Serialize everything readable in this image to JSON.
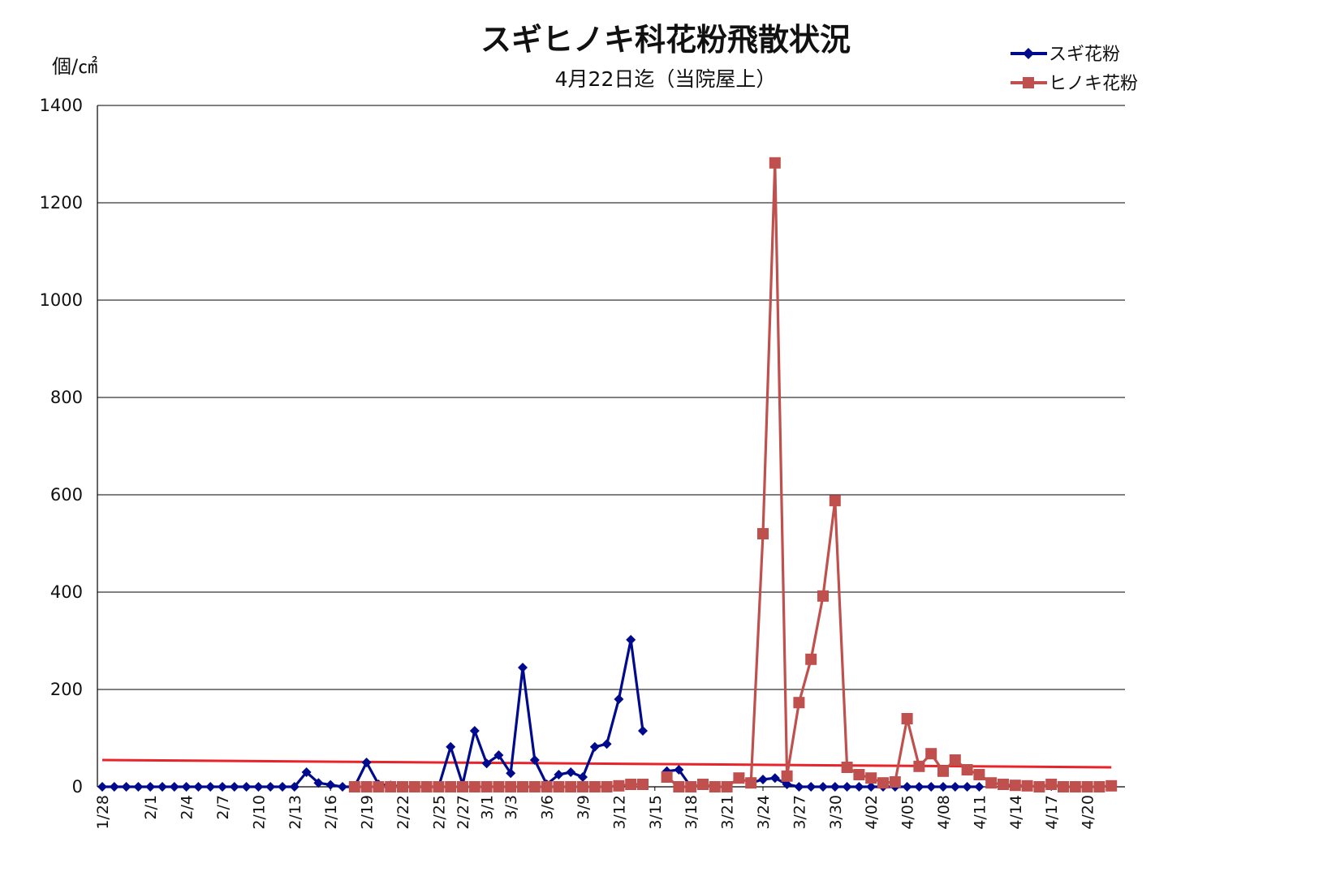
{
  "chart_data": {
    "type": "line",
    "title": "スギヒノキ科花粉飛散状況",
    "subtitle": "4月22日迄（当院屋上）",
    "ylabel": "個/㎠",
    "ylim": [
      0,
      1400
    ],
    "yticks": [
      0,
      200,
      400,
      600,
      800,
      1000,
      1200,
      1400
    ],
    "grid": true,
    "legend": "top-right",
    "x_start": "1/28",
    "x_end": "4/22",
    "xtick_labels": [
      "1/28",
      "2/1",
      "2/4",
      "2/7",
      "2/10",
      "2/13",
      "2/16",
      "2/19",
      "2/22",
      "2/25",
      "2/27",
      "3/1",
      "3/3",
      "3/6",
      "3/9",
      "3/12",
      "3/15",
      "3/18",
      "3/21",
      "3/24",
      "3/27",
      "3/30",
      "4/02",
      "4/05",
      "4/08",
      "4/11",
      "4/14",
      "4/17",
      "4/20"
    ],
    "xtick_dates": [
      "1/28",
      "2/1",
      "2/4",
      "2/7",
      "2/10",
      "2/13",
      "2/16",
      "2/19",
      "2/22",
      "2/25",
      "2/27",
      "3/1",
      "3/3",
      "3/6",
      "3/9",
      "3/12",
      "3/15",
      "3/18",
      "3/21",
      "3/24",
      "3/27",
      "3/30",
      "4/2",
      "4/5",
      "4/8",
      "4/11",
      "4/14",
      "4/17",
      "4/20"
    ],
    "series": [
      {
        "name": "スギ花粉",
        "color": "#000a8c",
        "marker": "diamond",
        "points": [
          {
            "x": "1/28",
            "y": 0
          },
          {
            "x": "1/29",
            "y": 0
          },
          {
            "x": "1/30",
            "y": 0
          },
          {
            "x": "1/31",
            "y": 0
          },
          {
            "x": "2/1",
            "y": 0
          },
          {
            "x": "2/2",
            "y": 0
          },
          {
            "x": "2/3",
            "y": 0
          },
          {
            "x": "2/4",
            "y": 0
          },
          {
            "x": "2/5",
            "y": 0
          },
          {
            "x": "2/6",
            "y": 0
          },
          {
            "x": "2/7",
            "y": 0
          },
          {
            "x": "2/8",
            "y": 0
          },
          {
            "x": "2/9",
            "y": 0
          },
          {
            "x": "2/10",
            "y": 0
          },
          {
            "x": "2/11",
            "y": 0
          },
          {
            "x": "2/12",
            "y": 0
          },
          {
            "x": "2/13",
            "y": 0
          },
          {
            "x": "2/14",
            "y": 30
          },
          {
            "x": "2/15",
            "y": 8
          },
          {
            "x": "2/16",
            "y": 4
          },
          {
            "x": "2/17",
            "y": 0
          },
          {
            "x": "2/18",
            "y": 0
          },
          {
            "x": "2/19",
            "y": 50
          },
          {
            "x": "2/20",
            "y": 5
          },
          {
            "x": "2/21",
            "y": 3
          },
          {
            "x": "2/22",
            "y": 0
          },
          {
            "x": "2/23",
            "y": 0
          },
          {
            "x": "2/24",
            "y": 0
          },
          {
            "x": "2/25",
            "y": 0
          },
          {
            "x": "2/26",
            "y": 82
          },
          {
            "x": "2/27",
            "y": 5
          },
          {
            "x": "2/28",
            "y": 115
          },
          {
            "x": "3/1",
            "y": 48
          },
          {
            "x": "3/2",
            "y": 65
          },
          {
            "x": "3/3",
            "y": 28
          },
          {
            "x": "3/4",
            "y": 245
          },
          {
            "x": "3/5",
            "y": 55
          },
          {
            "x": "3/6",
            "y": 5
          },
          {
            "x": "3/7",
            "y": 25
          },
          {
            "x": "3/8",
            "y": 30
          },
          {
            "x": "3/9",
            "y": 20
          },
          {
            "x": "3/10",
            "y": 82
          },
          {
            "x": "3/11",
            "y": 88
          },
          {
            "x": "3/12",
            "y": 180
          },
          {
            "x": "3/13",
            "y": 302
          },
          {
            "x": "3/14",
            "y": 115
          },
          {
            "x": "3/16",
            "y": 32
          },
          {
            "x": "3/17",
            "y": 35
          },
          {
            "x": "3/18",
            "y": 0
          },
          {
            "x": "3/23",
            "y": 8
          },
          {
            "x": "3/24",
            "y": 15
          },
          {
            "x": "3/25",
            "y": 18
          },
          {
            "x": "3/26",
            "y": 5
          },
          {
            "x": "3/27",
            "y": 0
          },
          {
            "x": "3/28",
            "y": 0
          },
          {
            "x": "3/29",
            "y": 0
          },
          {
            "x": "3/30",
            "y": 0
          },
          {
            "x": "3/31",
            "y": 0
          },
          {
            "x": "4/1",
            "y": 0
          },
          {
            "x": "4/2",
            "y": 0
          },
          {
            "x": "4/3",
            "y": 0
          },
          {
            "x": "4/4",
            "y": 0
          },
          {
            "x": "4/5",
            "y": 0
          },
          {
            "x": "4/6",
            "y": 0
          },
          {
            "x": "4/7",
            "y": 0
          },
          {
            "x": "4/8",
            "y": 0
          },
          {
            "x": "4/9",
            "y": 0
          },
          {
            "x": "4/10",
            "y": 0
          },
          {
            "x": "4/11",
            "y": 0
          }
        ]
      },
      {
        "name": "ヒノキ花粉",
        "color": "#c0504d",
        "marker": "square",
        "points": [
          {
            "x": "2/18",
            "y": 0
          },
          {
            "x": "2/19",
            "y": 0
          },
          {
            "x": "2/20",
            "y": 0
          },
          {
            "x": "2/21",
            "y": 0
          },
          {
            "x": "2/22",
            "y": 0
          },
          {
            "x": "2/23",
            "y": 0
          },
          {
            "x": "2/24",
            "y": 0
          },
          {
            "x": "2/25",
            "y": 0
          },
          {
            "x": "2/26",
            "y": 0
          },
          {
            "x": "2/27",
            "y": 0
          },
          {
            "x": "2/28",
            "y": 0
          },
          {
            "x": "3/1",
            "y": 0
          },
          {
            "x": "3/2",
            "y": 0
          },
          {
            "x": "3/3",
            "y": 0
          },
          {
            "x": "3/4",
            "y": 0
          },
          {
            "x": "3/5",
            "y": 0
          },
          {
            "x": "3/6",
            "y": 0
          },
          {
            "x": "3/7",
            "y": 0
          },
          {
            "x": "3/8",
            "y": 0
          },
          {
            "x": "3/9",
            "y": 0
          },
          {
            "x": "3/10",
            "y": 0
          },
          {
            "x": "3/11",
            "y": 0
          },
          {
            "x": "3/12",
            "y": 2
          },
          {
            "x": "3/13",
            "y": 5
          },
          {
            "x": "3/14",
            "y": 5
          },
          {
            "x": "3/16",
            "y": 20
          },
          {
            "x": "3/17",
            "y": 0
          },
          {
            "x": "3/18",
            "y": 0
          },
          {
            "x": "3/19",
            "y": 5
          },
          {
            "x": "3/20",
            "y": 0
          },
          {
            "x": "3/21",
            "y": 0
          },
          {
            "x": "3/22",
            "y": 18
          },
          {
            "x": "3/23",
            "y": 8
          },
          {
            "x": "3/24",
            "y": 520
          },
          {
            "x": "3/25",
            "y": 1282
          },
          {
            "x": "3/26",
            "y": 22
          },
          {
            "x": "3/27",
            "y": 173
          },
          {
            "x": "3/28",
            "y": 262
          },
          {
            "x": "3/29",
            "y": 392
          },
          {
            "x": "3/30",
            "y": 588
          },
          {
            "x": "3/31",
            "y": 40
          },
          {
            "x": "4/1",
            "y": 25
          },
          {
            "x": "4/2",
            "y": 18
          },
          {
            "x": "4/3",
            "y": 8
          },
          {
            "x": "4/4",
            "y": 10
          },
          {
            "x": "4/5",
            "y": 140
          },
          {
            "x": "4/6",
            "y": 42
          },
          {
            "x": "4/7",
            "y": 68
          },
          {
            "x": "4/8",
            "y": 32
          },
          {
            "x": "4/9",
            "y": 55
          },
          {
            "x": "4/10",
            "y": 35
          },
          {
            "x": "4/11",
            "y": 25
          },
          {
            "x": "4/12",
            "y": 8
          },
          {
            "x": "4/13",
            "y": 5
          },
          {
            "x": "4/14",
            "y": 3
          },
          {
            "x": "4/15",
            "y": 2
          },
          {
            "x": "4/16",
            "y": 0
          },
          {
            "x": "4/17",
            "y": 5
          },
          {
            "x": "4/18",
            "y": 0
          },
          {
            "x": "4/19",
            "y": 0
          },
          {
            "x": "4/20",
            "y": 0
          },
          {
            "x": "4/21",
            "y": 0
          },
          {
            "x": "4/22",
            "y": 2
          }
        ]
      }
    ],
    "reference_line": {
      "color": "#e8232a",
      "points": [
        {
          "x": "1/28",
          "y": 55
        },
        {
          "x": "4/22",
          "y": 40
        }
      ]
    }
  }
}
